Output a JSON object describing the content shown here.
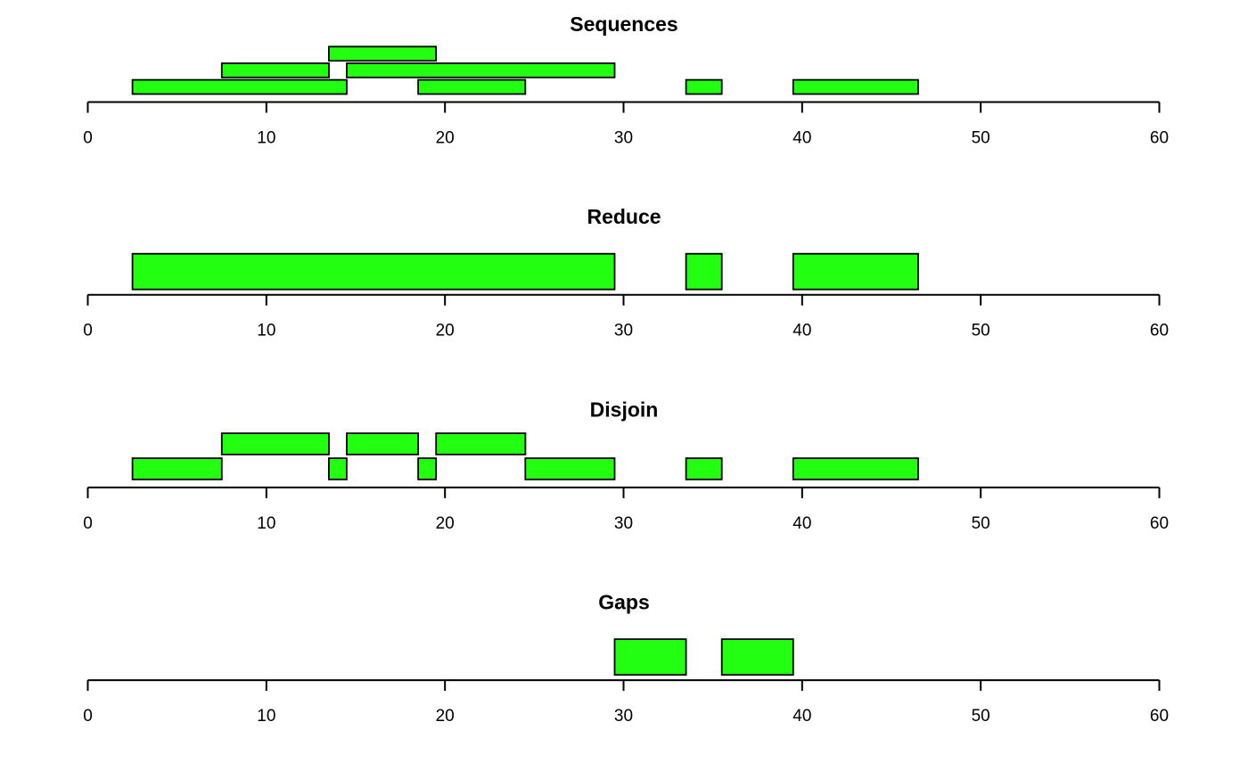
{
  "colors": {
    "fill": "#22ff11",
    "stroke": "#000000",
    "background": "#ffffff"
  },
  "chart_data": [
    {
      "type": "bar",
      "title": "Sequences",
      "xlim": [
        0,
        60
      ],
      "x_ticks": [
        0,
        10,
        20,
        30,
        40,
        50,
        60
      ],
      "x_tick_labels": [
        "0",
        "10",
        "20",
        "30",
        "40",
        "50",
        "60"
      ],
      "intervals": [
        {
          "start": 3,
          "end": 14,
          "row": 1
        },
        {
          "start": 8,
          "end": 13,
          "row": 2
        },
        {
          "start": 14,
          "end": 19,
          "row": 3
        },
        {
          "start": 15,
          "end": 29,
          "row": 2
        },
        {
          "start": 19,
          "end": 24,
          "row": 1
        },
        {
          "start": 34,
          "end": 35,
          "row": 1
        },
        {
          "start": 40,
          "end": 46,
          "row": 1
        }
      ]
    },
    {
      "type": "bar",
      "title": "Reduce",
      "xlim": [
        0,
        60
      ],
      "x_ticks": [
        0,
        10,
        20,
        30,
        40,
        50,
        60
      ],
      "x_tick_labels": [
        "0",
        "10",
        "20",
        "30",
        "40",
        "50",
        "60"
      ],
      "intervals": [
        {
          "start": 3,
          "end": 29,
          "row": 1
        },
        {
          "start": 34,
          "end": 35,
          "row": 1
        },
        {
          "start": 40,
          "end": 46,
          "row": 1
        }
      ]
    },
    {
      "type": "bar",
      "title": "Disjoin",
      "xlim": [
        0,
        60
      ],
      "x_ticks": [
        0,
        10,
        20,
        30,
        40,
        50,
        60
      ],
      "x_tick_labels": [
        "0",
        "10",
        "20",
        "30",
        "40",
        "50",
        "60"
      ],
      "intervals": [
        {
          "start": 3,
          "end": 7,
          "row": 1
        },
        {
          "start": 8,
          "end": 13,
          "row": 2
        },
        {
          "start": 14,
          "end": 14,
          "row": 1
        },
        {
          "start": 15,
          "end": 18,
          "row": 2
        },
        {
          "start": 19,
          "end": 19,
          "row": 1
        },
        {
          "start": 20,
          "end": 24,
          "row": 2
        },
        {
          "start": 25,
          "end": 29,
          "row": 1
        },
        {
          "start": 34,
          "end": 35,
          "row": 1
        },
        {
          "start": 40,
          "end": 46,
          "row": 1
        }
      ]
    },
    {
      "type": "bar",
      "title": "Gaps",
      "xlim": [
        0,
        60
      ],
      "x_ticks": [
        0,
        10,
        20,
        30,
        40,
        50,
        60
      ],
      "x_tick_labels": [
        "0",
        "10",
        "20",
        "30",
        "40",
        "50",
        "60"
      ],
      "intervals": [
        {
          "start": 30,
          "end": 33,
          "row": 1
        },
        {
          "start": 36,
          "end": 39,
          "row": 1
        }
      ]
    }
  ]
}
